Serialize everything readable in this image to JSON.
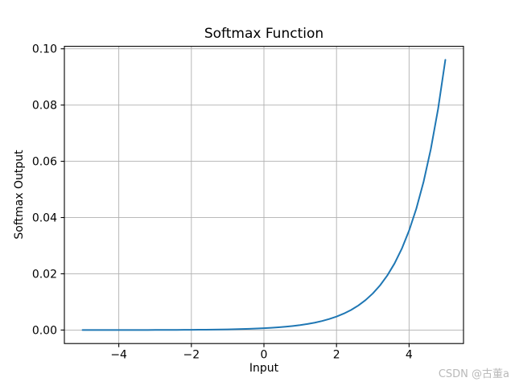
{
  "chart_data": {
    "type": "line",
    "title": "Softmax Function",
    "xlabel": "Input",
    "ylabel": "Softmax Output",
    "grid": true,
    "legend_position": "none",
    "xlim": [
      -5.5,
      5.5
    ],
    "ylim": [
      -0.0048,
      0.100886
    ],
    "x_ticks": [
      -4,
      -2,
      0,
      2,
      4
    ],
    "x_tick_labels": [
      "−4",
      "−2",
      "0",
      "2",
      "4"
    ],
    "y_ticks": [
      0,
      0.02,
      0.04,
      0.06,
      0.08,
      0.1
    ],
    "y_tick_labels": [
      "0.00",
      "0.02",
      "0.04",
      "0.06",
      "0.08",
      "0.10"
    ],
    "line_color": "#1f77b4",
    "grid_color": "#b0b0b0",
    "axes_color": "#000000",
    "background_color": "#ffffff",
    "x": [
      -5,
      -4.8,
      -4.6,
      -4.4,
      -4.2,
      -4,
      -3.8,
      -3.6,
      -3.4,
      -3.2,
      -3,
      -2.8,
      -2.6,
      -2.4,
      -2.2,
      -2,
      -1.8,
      -1.6,
      -1.4,
      -1.2,
      -1,
      -0.8,
      -0.6,
      -0.4,
      -0.2,
      0,
      0.2,
      0.4,
      0.6,
      0.8,
      1,
      1.2,
      1.4,
      1.6,
      1.8,
      2,
      2.2,
      2.4,
      2.6,
      2.8,
      3,
      3.2,
      3.4,
      3.6,
      3.8,
      4,
      4.2,
      4.4,
      4.6,
      4.8,
      5
    ],
    "series": [
      {
        "name": "softmax",
        "values": [
          4.4e-06,
          5.3e-06,
          6.5e-06,
          7.9e-06,
          9.7e-06,
          1.19e-05,
          1.45e-05,
          1.77e-05,
          2.16e-05,
          2.64e-05,
          3.22e-05,
          3.94e-05,
          4.81e-05,
          5.87e-05,
          7.17e-05,
          8.76e-05,
          0.000107,
          0.0001307,
          0.0001596,
          0.000195,
          0.0002382,
          0.0002909,
          0.0003553,
          0.000434,
          0.00053,
          0.0006474,
          0.0007907,
          0.0009658,
          0.0011796,
          0.0014408,
          0.0017598,
          0.0021494,
          0.0026253,
          0.0032066,
          0.0039165,
          0.0047836,
          0.0058427,
          0.0071363,
          0.0087163,
          0.0106462,
          0.0130033,
          0.0158822,
          0.0193985,
          0.0236934,
          0.0289392,
          0.0353464,
          0.0431721,
          0.0527306,
          0.0644055,
          0.0786649,
          0.0960817
        ]
      }
    ]
  },
  "watermark": {
    "text": "CSDN @古董a",
    "color": "#b9b9b9"
  }
}
